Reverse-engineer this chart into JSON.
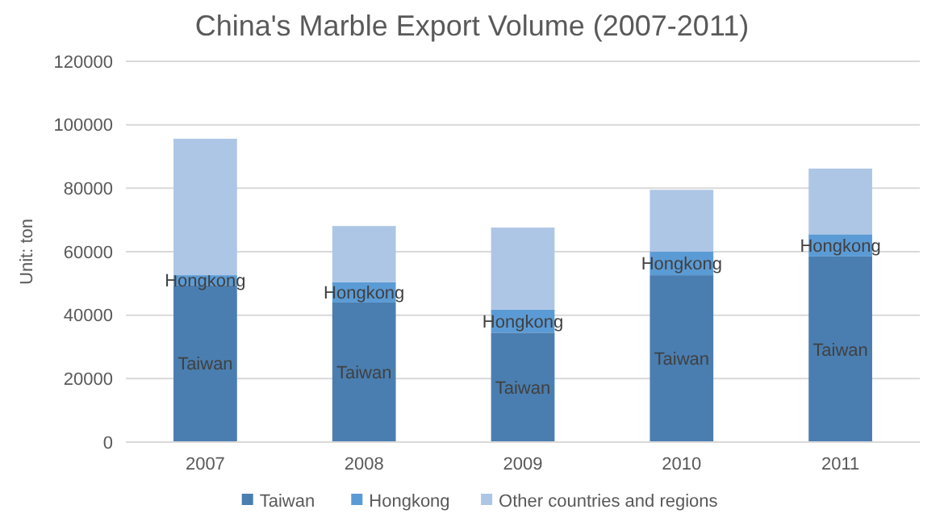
{
  "chart_data": {
    "type": "bar",
    "title": "China's Marble Export Volume (2007-2011)",
    "ylabel": "Unit: ton",
    "categories": [
      "2007",
      "2008",
      "2009",
      "2010",
      "2011"
    ],
    "stacked": true,
    "series": [
      {
        "name": "Taiwan",
        "color": "#4a7eb0",
        "values": [
          49500,
          44000,
          34500,
          52600,
          58500
        ],
        "value_labels": [
          "Taiwan",
          "Taiwan",
          "Taiwan",
          "Taiwan",
          "Taiwan"
        ]
      },
      {
        "name": "Hongkong",
        "color": "#5b9bd5",
        "values": [
          3100,
          6400,
          7300,
          7400,
          7000
        ],
        "value_labels": [
          "Hongkong",
          "Hongkong",
          "Hongkong",
          "Hongkong",
          "Hongkong"
        ]
      },
      {
        "name": "Other countries and regions",
        "color": "#adc6e5",
        "values": [
          43000,
          17700,
          25800,
          19500,
          20700
        ]
      }
    ],
    "ylim": [
      0,
      120000
    ],
    "yticks": [
      0,
      20000,
      40000,
      60000,
      80000,
      100000,
      120000
    ],
    "grid": "y",
    "legend": "bottom"
  }
}
